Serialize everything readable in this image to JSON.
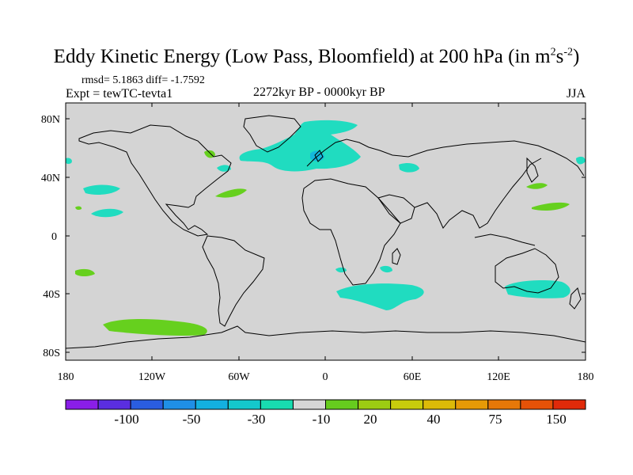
{
  "title_main": "Eddy Kinetic Energy (Low Pass, Bloomfield) at 200 hPa (in m",
  "title_sup1": "2",
  "title_mid": "s",
  "title_sup2": "-2",
  "title_end": ")",
  "stats": "rmsd= 5.1863  diff= -1.7592",
  "experiment": "Expt = tewTC-tevta1",
  "period": "2272kyr BP - 0000kyr BP",
  "season": "JJA",
  "lat_labels": [
    "80N",
    "40N",
    "0",
    "40S",
    "80S"
  ],
  "lon_labels": [
    "180",
    "120W",
    "60W",
    "0",
    "60E",
    "120E",
    "180"
  ],
  "colorbar": {
    "colors": [
      "#8a1ee8",
      "#5a2ee0",
      "#2a5de0",
      "#1f8fe6",
      "#13b0e0",
      "#14c8cc",
      "#18dcb0",
      "#d6d6d6",
      "#66cc1e",
      "#9ccc12",
      "#c8cc0c",
      "#dcba08",
      "#e69a06",
      "#e67808",
      "#e65208",
      "#e02a0a"
    ],
    "labels": [
      "-100",
      "-50",
      "-30",
      "-10",
      "20",
      "40",
      "75",
      "150"
    ]
  },
  "map_colors": {
    "ocean": "#d4d4d4",
    "cyan": "#20dcc0",
    "green": "#66d01e",
    "blue": "#14b8dc"
  }
}
